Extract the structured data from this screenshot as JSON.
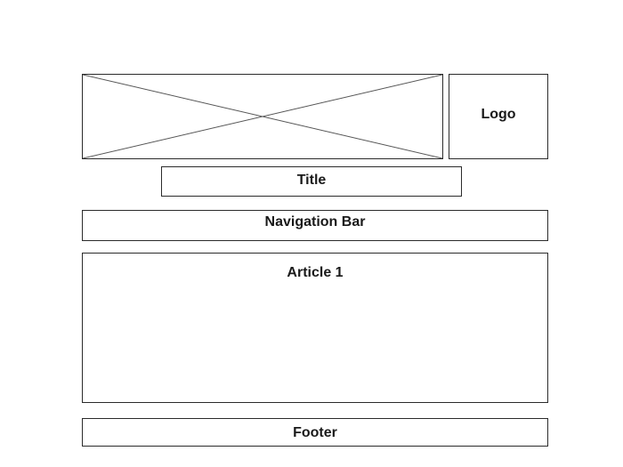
{
  "wireframe": {
    "banner": {
      "type": "image-placeholder",
      "icon": "image-placeholder-cross"
    },
    "logo": {
      "label": "Logo"
    },
    "title": {
      "label": "Title"
    },
    "navigation": {
      "label": "Navigation Bar"
    },
    "article": {
      "label": "Article 1"
    },
    "footer": {
      "label": "Footer"
    }
  },
  "colors": {
    "stroke": "#2b2b2b",
    "background": "#ffffff",
    "text": "#1a1a1a"
  }
}
